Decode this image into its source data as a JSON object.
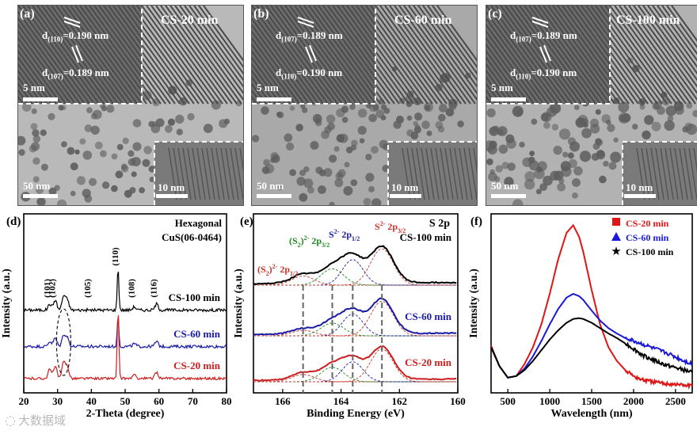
{
  "tem": [
    {
      "panel": "(a)",
      "title": "CS-20 min",
      "d1": "d",
      "d1_sub": "(110)",
      "d1_val": "=0.190 nm",
      "d2": "d",
      "d2_sub": "(107)",
      "d2_val": "=0.189 nm",
      "inset_scale": "5 nm",
      "main_scale": "50 nm",
      "zoom_scale": "10 nm"
    },
    {
      "panel": "(b)",
      "title": "CS-60 min",
      "d1": "d",
      "d1_sub": "(107)",
      "d1_val": "=0.189 nm",
      "d2": "d",
      "d2_sub": "(110)",
      "d2_val": "=0.190 nm",
      "inset_scale": "5 nm",
      "main_scale": "50 nm",
      "zoom_scale": "10 nm"
    },
    {
      "panel": "(c)",
      "title": "CS-100 min",
      "d1": "d",
      "d1_sub": "(107)",
      "d1_val": "=0.189 nm",
      "d2": "d",
      "d2_sub": "(110)",
      "d2_val": "=0.190 nm",
      "inset_scale": "5 nm",
      "main_scale": "50 nm",
      "zoom_scale": "10 nm"
    }
  ],
  "chart_data": [
    {
      "type": "line",
      "panel": "(d)",
      "annotation": [
        "Hexagonal",
        "CuS(06-0464)"
      ],
      "xlabel": "2-Theta (degree)",
      "ylabel": "Intensity (a.u.)",
      "xlim": [
        20,
        80
      ],
      "x_ticks": [
        20,
        30,
        40,
        50,
        60,
        70,
        80
      ],
      "peak_labels": [
        {
          "text": "(101)",
          "x": 27.7
        },
        {
          "text": "(102)",
          "x": 29.3
        },
        {
          "text": "(105)",
          "x": 39.7
        },
        {
          "text": "(110)",
          "x": 47.9
        },
        {
          "text": "(108)",
          "x": 52.7
        },
        {
          "text": "(116)",
          "x": 59.3
        }
      ],
      "series": [
        {
          "name": "CS-100 min",
          "color": "#000000",
          "offset": 2.0,
          "peaks": [
            [
              27.7,
              0.18
            ],
            [
              29.3,
              0.3
            ],
            [
              31.8,
              0.42
            ],
            [
              32.9,
              0.3
            ],
            [
              47.9,
              1.25
            ],
            [
              52.7,
              0.1
            ],
            [
              59.3,
              0.18
            ]
          ]
        },
        {
          "name": "CS-60 min",
          "color": "#1a1aa6",
          "offset": 1.0,
          "peaks": [
            [
              27.7,
              0.15
            ],
            [
              29.3,
              0.25
            ],
            [
              31.8,
              0.35
            ],
            [
              32.9,
              0.26
            ],
            [
              47.9,
              0.9
            ],
            [
              52.7,
              0.08
            ],
            [
              59.3,
              0.15
            ]
          ]
        },
        {
          "name": "CS-20 min",
          "color": "#cc1f1f",
          "offset": 0.0,
          "peaks": [
            [
              27.7,
              0.32
            ],
            [
              29.3,
              0.45
            ],
            [
              31.8,
              0.55
            ],
            [
              32.9,
              0.42
            ],
            [
              47.9,
              2.4
            ],
            [
              52.7,
              0.12
            ],
            [
              59.3,
              0.22
            ]
          ]
        }
      ]
    },
    {
      "type": "line",
      "panel": "(e)",
      "title": "S 2p",
      "xlabel": "Binding Energy (eV)",
      "ylabel": "Intensity (a.u.)",
      "xlim": [
        167,
        160
      ],
      "x_ticks": [
        166,
        164,
        162,
        160
      ],
      "guide_lines": [
        165.3,
        164.3,
        163.6,
        162.6
      ],
      "component_labels": [
        {
          "prefix": "(S",
          "sub": "2",
          "suffix": ")",
          "sup": "2-",
          "orbital": "2p",
          "osub": "1/2",
          "color": "#c8342a"
        },
        {
          "prefix": "(S",
          "sub": "2",
          "suffix": ")",
          "sup": "2-",
          "orbital": "2p",
          "osub": "3/2",
          "color": "#1e8a1e"
        },
        {
          "prefix": "S",
          "sub": "",
          "suffix": "",
          "sup": "2-",
          "orbital": "2p",
          "osub": "1/2",
          "color": "#1a1aa6"
        },
        {
          "prefix": "S",
          "sub": "",
          "suffix": "",
          "sup": "2-",
          "orbital": "2p",
          "osub": "3/2",
          "color": "#c8342a"
        }
      ],
      "series": [
        {
          "name": "CS-100 min",
          "color": "#000000",
          "offset": 2.0,
          "components": [
            [
              165.3,
              0.25,
              0.55
            ],
            [
              164.3,
              0.45,
              0.55
            ],
            [
              163.6,
              0.7,
              0.5
            ],
            [
              162.6,
              1.0,
              0.55
            ]
          ]
        },
        {
          "name": "CS-60 min",
          "color": "#1a1aa6",
          "offset": 1.0,
          "components": [
            [
              165.3,
              0.15,
              0.55
            ],
            [
              164.3,
              0.35,
              0.55
            ],
            [
              163.6,
              0.6,
              0.5
            ],
            [
              162.6,
              0.95,
              0.55
            ]
          ]
        },
        {
          "name": "CS-20 min",
          "color": "#cc1f1f",
          "offset": 0.0,
          "components": [
            [
              165.3,
              0.2,
              0.55
            ],
            [
              164.3,
              0.4,
              0.55
            ],
            [
              163.6,
              0.55,
              0.5
            ],
            [
              162.6,
              0.9,
              0.55
            ]
          ]
        }
      ]
    },
    {
      "type": "line",
      "panel": "(f)",
      "xlabel": "Wavelength (nm)",
      "ylabel": "Intensity (a.u.)",
      "xlim": [
        300,
        2700
      ],
      "x_ticks": [
        500,
        1000,
        1500,
        2000,
        2500
      ],
      "series": [
        {
          "name": "CS-20 min",
          "color": "#e01515",
          "marker": "square",
          "x": [
            300,
            400,
            500,
            600,
            700,
            800,
            900,
            1000,
            1100,
            1200,
            1280,
            1350,
            1400,
            1500,
            1600,
            1700,
            1800,
            1900,
            2000,
            2100,
            2200,
            2300,
            2400,
            2500,
            2600,
            2700
          ],
          "y": [
            0.62,
            0.35,
            0.2,
            0.22,
            0.38,
            0.6,
            0.9,
            1.3,
            1.75,
            2.1,
            2.2,
            2.05,
            1.85,
            1.35,
            0.9,
            0.6,
            0.42,
            0.3,
            0.22,
            0.17,
            0.15,
            0.13,
            0.12,
            0.11,
            0.1,
            0.09
          ]
        },
        {
          "name": "CS-60 min",
          "color": "#1a1ad6",
          "marker": "triangle",
          "x": [
            300,
            400,
            500,
            600,
            700,
            800,
            900,
            1000,
            1100,
            1200,
            1280,
            1350,
            1400,
            1500,
            1600,
            1700,
            1800,
            1900,
            2000,
            2100,
            2200,
            2300,
            2400,
            2500,
            2600,
            2700
          ],
          "y": [
            0.6,
            0.35,
            0.2,
            0.22,
            0.32,
            0.48,
            0.68,
            0.9,
            1.1,
            1.25,
            1.3,
            1.27,
            1.22,
            1.08,
            0.95,
            0.85,
            0.78,
            0.72,
            0.68,
            0.64,
            0.6,
            0.56,
            0.52,
            0.47,
            0.42,
            0.38
          ]
        },
        {
          "name": "CS-100 min",
          "color": "#000000",
          "marker": "star",
          "x": [
            300,
            400,
            500,
            600,
            700,
            800,
            900,
            1000,
            1100,
            1200,
            1280,
            1350,
            1400,
            1500,
            1600,
            1700,
            1800,
            1900,
            2000,
            2100,
            2200,
            2300,
            2400,
            2500,
            2600,
            2700
          ],
          "y": [
            0.6,
            0.35,
            0.2,
            0.22,
            0.3,
            0.42,
            0.56,
            0.7,
            0.82,
            0.92,
            0.97,
            0.98,
            0.97,
            0.92,
            0.85,
            0.78,
            0.72,
            0.65,
            0.58,
            0.5,
            0.45,
            0.4,
            0.36,
            0.33,
            0.3,
            0.27
          ]
        }
      ]
    }
  ],
  "watermark": "大数据域"
}
